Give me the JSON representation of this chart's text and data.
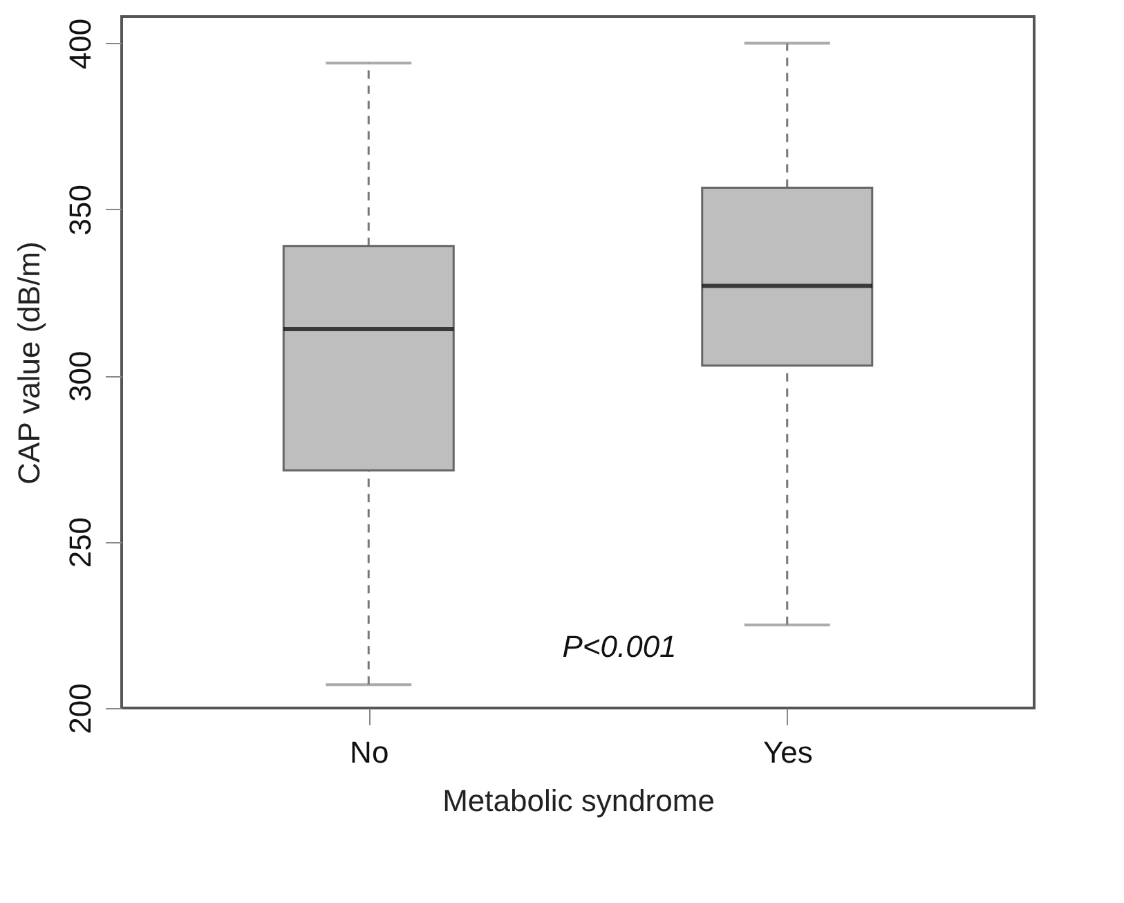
{
  "chart_data": {
    "type": "box",
    "xlabel": "Metabolic syndrome",
    "ylabel": "CAP value (dB/m)",
    "categories": [
      "No",
      "Yes"
    ],
    "series": [
      {
        "color": "#bebebe",
        "boxes": [
          {
            "low": 207,
            "q1": 271.5,
            "median": 314,
            "q3": 339,
            "high": 394
          },
          {
            "low": 225,
            "q1": 303,
            "median": 327,
            "q3": 356.5,
            "high": 400
          }
        ]
      }
    ],
    "ylim": [
      200,
      408
    ],
    "yticks": [
      200,
      250,
      300,
      350,
      400
    ],
    "grid": false,
    "annotations": [
      "P<0.001"
    ]
  }
}
